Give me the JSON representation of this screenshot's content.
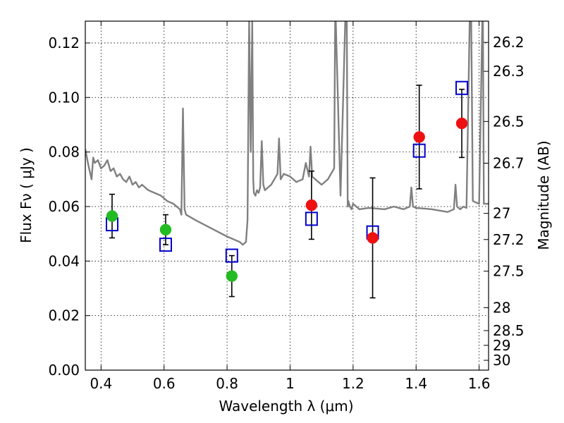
{
  "chart_data": {
    "type": "scatter",
    "xlabel": "Wavelength  λ (μm)",
    "ylabel": "Flux  Fν  ( μJy )",
    "y2label": "Magnitude (AB)",
    "xlim": [
      0.35,
      1.63
    ],
    "ylim": [
      0.0,
      0.128
    ],
    "grid": true,
    "x_ticks": [
      0.4,
      0.6,
      0.8,
      1.0,
      1.2,
      1.4,
      1.6
    ],
    "x_tick_labels": [
      "0.4",
      "0.6",
      "0.8",
      "1",
      "1.2",
      "1.4",
      "1.6"
    ],
    "y_ticks": [
      0.0,
      0.02,
      0.04,
      0.06,
      0.08,
      0.1,
      0.12
    ],
    "y_tick_labels": [
      "0.00",
      "0.02",
      "0.04",
      "0.06",
      "0.08",
      "0.10",
      "0.12"
    ],
    "y2_ticks": [
      {
        "label": "26.2",
        "flux": 0.1202
      },
      {
        "label": "26.3",
        "flux": 0.1096
      },
      {
        "label": "26.5",
        "flux": 0.0912
      },
      {
        "label": "26.7",
        "flux": 0.0759
      },
      {
        "label": "27",
        "flux": 0.0575
      },
      {
        "label": "27.2",
        "flux": 0.0479
      },
      {
        "label": "27.5",
        "flux": 0.0363
      },
      {
        "label": "28",
        "flux": 0.0229
      },
      {
        "label": "28.5",
        "flux": 0.0145
      },
      {
        "label": "29",
        "flux": 0.0091
      },
      {
        "label": "30",
        "flux": 0.0036
      }
    ],
    "series": [
      {
        "kind": "line",
        "color": "#808080",
        "x": [
          0.35,
          0.36,
          0.37,
          0.375,
          0.38,
          0.39,
          0.4,
          0.41,
          0.42,
          0.43,
          0.44,
          0.45,
          0.46,
          0.47,
          0.48,
          0.49,
          0.5,
          0.51,
          0.52,
          0.53,
          0.55,
          0.57,
          0.59,
          0.61,
          0.63,
          0.65,
          0.655,
          0.66,
          0.665,
          0.67,
          0.7,
          0.75,
          0.8,
          0.84,
          0.85,
          0.86,
          0.865,
          0.87,
          0.875,
          0.88,
          0.883,
          0.885,
          0.89,
          0.895,
          0.9,
          0.905,
          0.91,
          0.915,
          0.92,
          0.93,
          0.94,
          0.95,
          0.96,
          0.965,
          0.97,
          0.98,
          1.0,
          1.02,
          1.04,
          1.05,
          1.06,
          1.065,
          1.07,
          1.08,
          1.1,
          1.12,
          1.14,
          1.143,
          1.145,
          1.16,
          1.175,
          1.18,
          1.183,
          1.185,
          1.19,
          1.195,
          1.2,
          1.22,
          1.25,
          1.3,
          1.33,
          1.36,
          1.38,
          1.385,
          1.39,
          1.4,
          1.45,
          1.5,
          1.52,
          1.525,
          1.53,
          1.54,
          1.55,
          1.56,
          1.57,
          1.575,
          1.58,
          1.6,
          1.61,
          1.612,
          1.615,
          1.62,
          1.63
        ],
        "y": [
          0.081,
          0.075,
          0.07,
          0.078,
          0.076,
          0.077,
          0.074,
          0.075,
          0.077,
          0.073,
          0.074,
          0.071,
          0.072,
          0.07,
          0.069,
          0.071,
          0.068,
          0.069,
          0.067,
          0.068,
          0.066,
          0.065,
          0.064,
          0.062,
          0.061,
          0.059,
          0.057,
          0.096,
          0.059,
          0.057,
          0.055,
          0.052,
          0.049,
          0.047,
          0.046,
          0.047,
          0.055,
          0.128,
          0.08,
          0.128,
          0.07,
          0.065,
          0.064,
          0.066,
          0.065,
          0.067,
          0.084,
          0.068,
          0.066,
          0.067,
          0.068,
          0.07,
          0.072,
          0.085,
          0.07,
          0.072,
          0.071,
          0.069,
          0.07,
          0.076,
          0.071,
          0.082,
          0.071,
          0.07,
          0.068,
          0.07,
          0.074,
          0.128,
          0.128,
          0.064,
          0.128,
          0.128,
          0.06,
          0.062,
          0.06,
          0.059,
          0.061,
          0.059,
          0.0595,
          0.059,
          0.06,
          0.059,
          0.06,
          0.067,
          0.06,
          0.0595,
          0.059,
          0.058,
          0.059,
          0.068,
          0.06,
          0.059,
          0.06,
          0.0595,
          0.128,
          0.128,
          0.062,
          0.061,
          0.128,
          0.128,
          0.061,
          0.061,
          0.061
        ]
      },
      {
        "kind": "squares",
        "color": "#0000cc",
        "x": [
          0.435,
          0.605,
          0.815,
          1.068,
          1.262,
          1.41,
          1.545
        ],
        "y": [
          0.0535,
          0.046,
          0.042,
          0.0555,
          0.0505,
          0.0805,
          0.1035
        ]
      },
      {
        "kind": "points",
        "color": "#22bb22",
        "x": [
          0.435,
          0.605,
          0.815
        ],
        "y": [
          0.0565,
          0.0515,
          0.0345
        ],
        "yerr": [
          0.008,
          0.0055,
          0.0075
        ]
      },
      {
        "kind": "points",
        "color": "#ee1111",
        "x": [
          1.068,
          1.262,
          1.41,
          1.545
        ],
        "y": [
          0.0605,
          0.0485,
          0.0855,
          0.0905
        ],
        "yerr": [
          0.0125,
          0.022,
          0.019,
          0.0125
        ]
      }
    ]
  }
}
